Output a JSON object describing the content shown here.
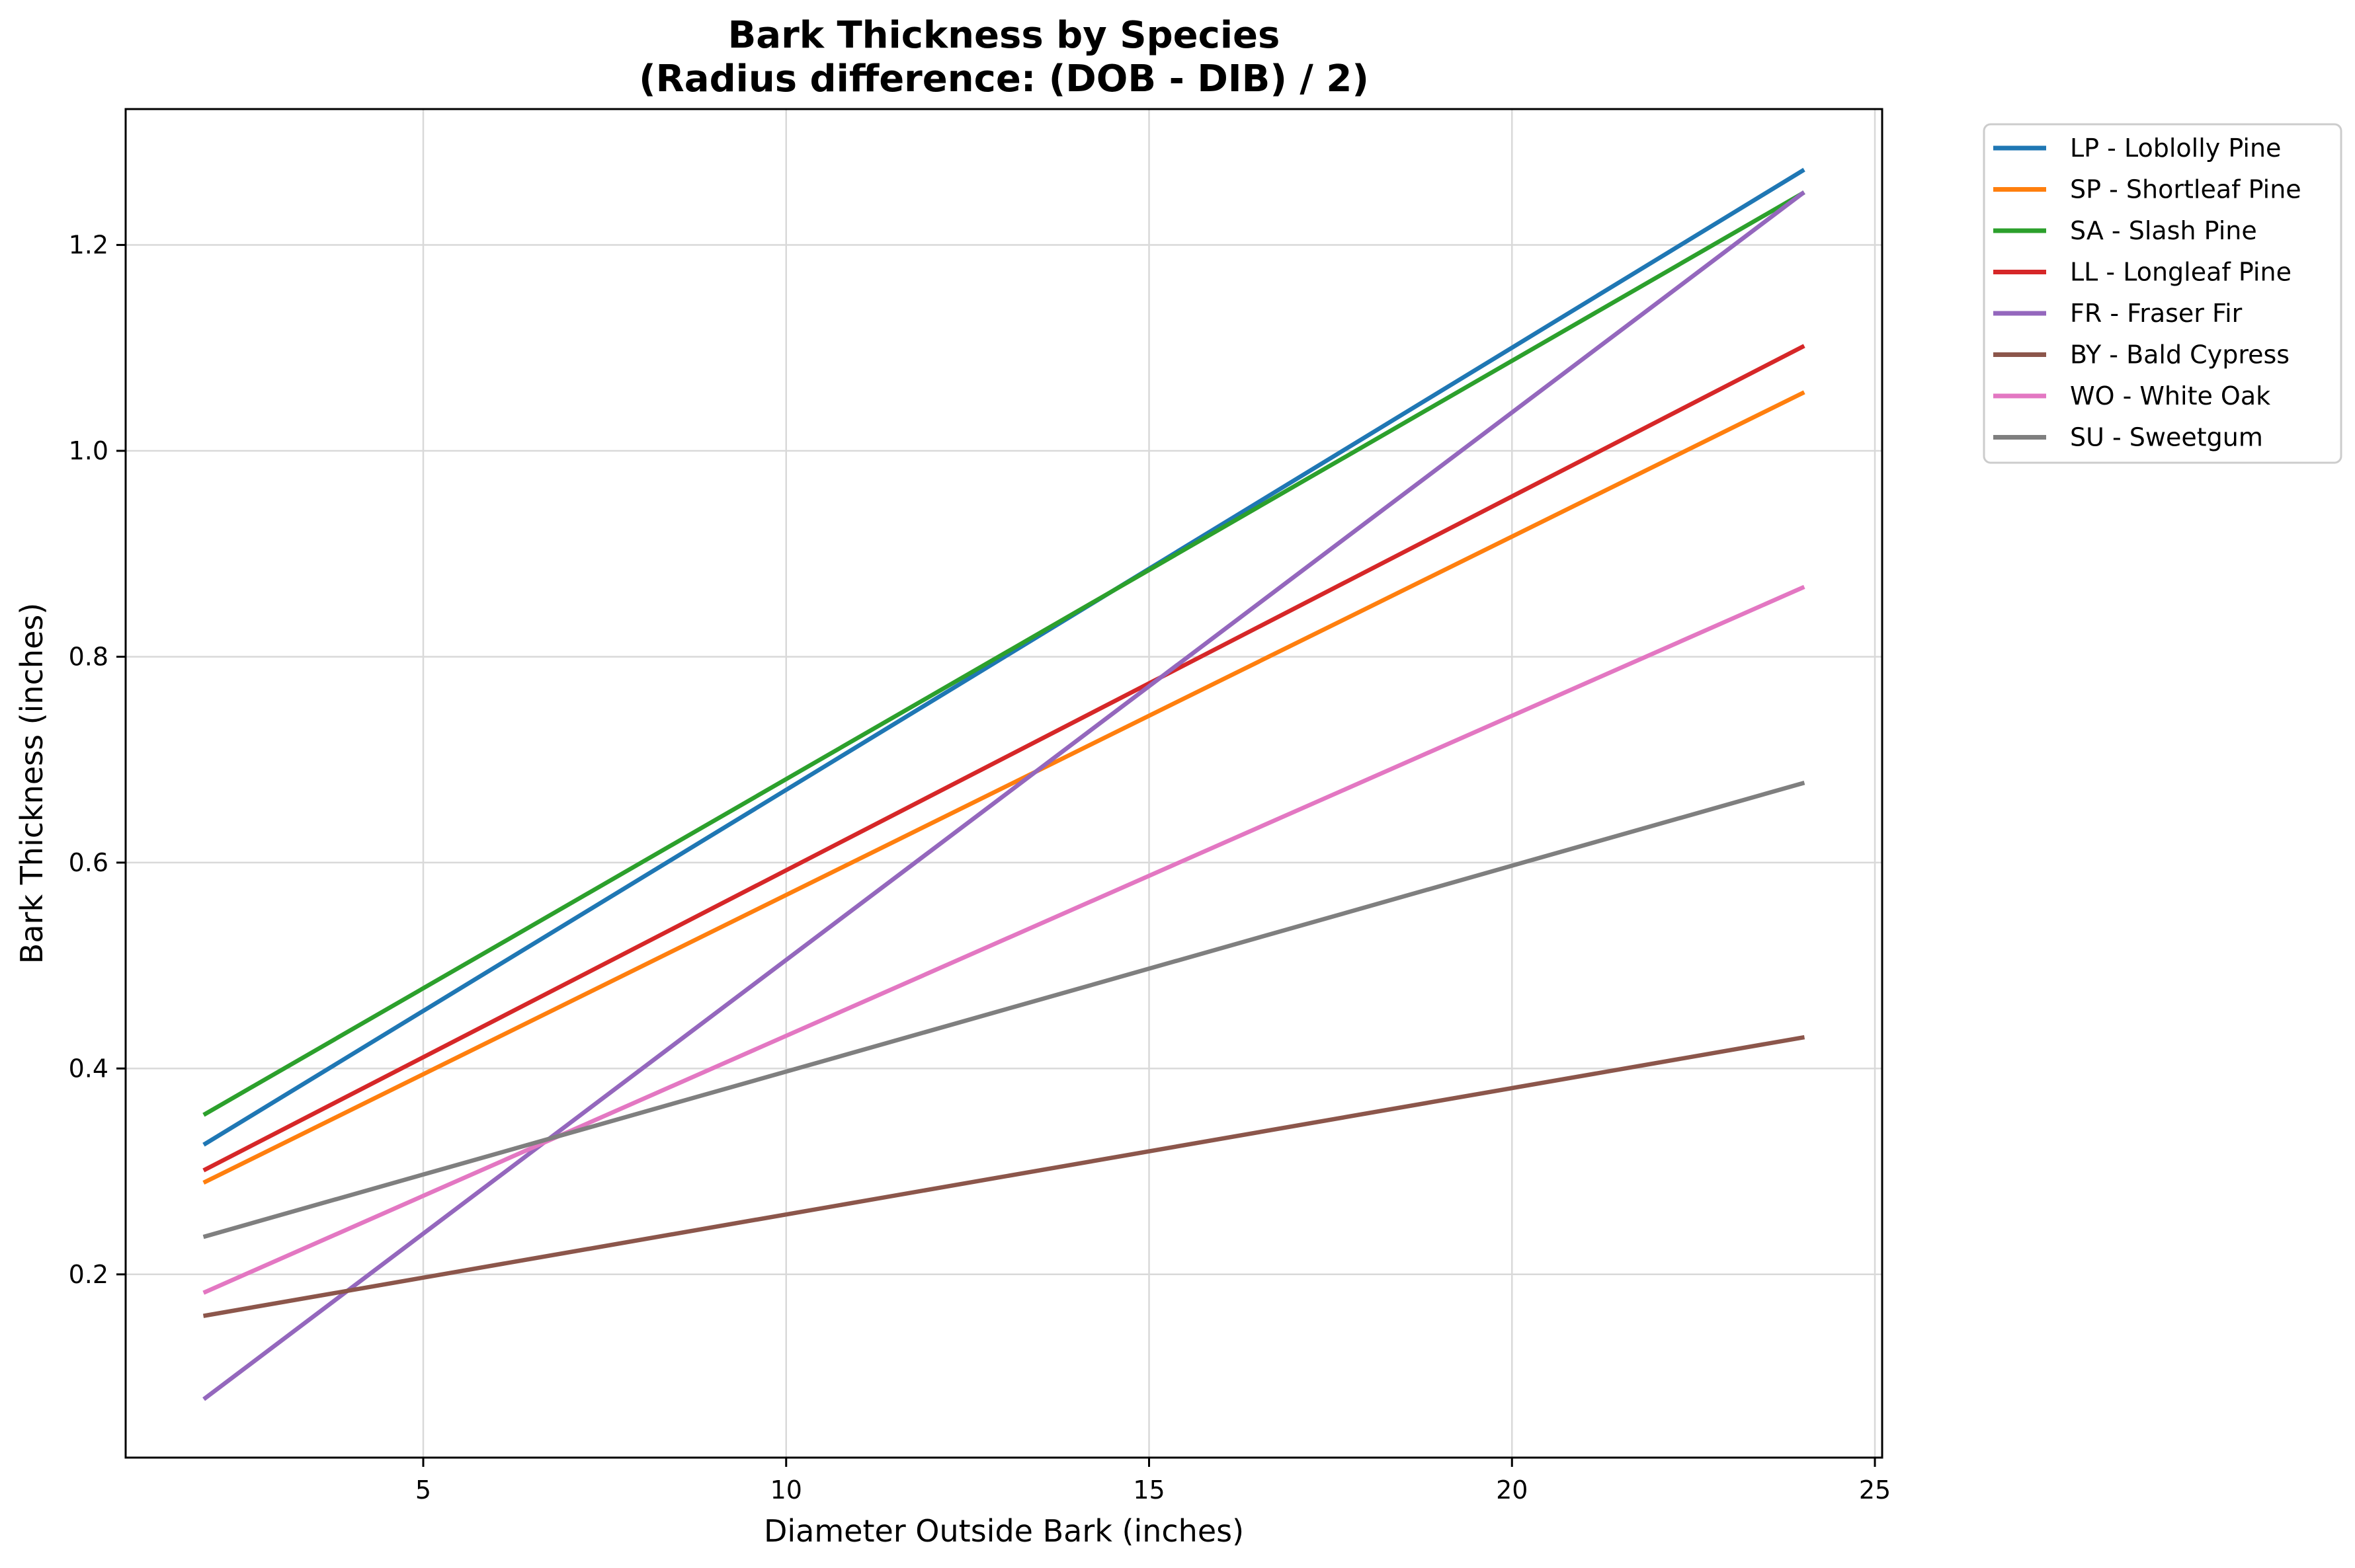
{
  "chart_data": {
    "type": "line",
    "title": "Bark Thickness by Species",
    "subtitle": "(Radius difference: (DOB - DIB) / 2)",
    "xlabel": "Diameter Outside Bark (inches)",
    "ylabel": "Bark Thickness (inches)",
    "xlim": [
      0.9,
      25.1
    ],
    "ylim": [
      0.022,
      1.332
    ],
    "xticks": [
      5,
      10,
      15,
      20,
      25
    ],
    "yticks": [
      0.2,
      0.4,
      0.6,
      0.8,
      1.0,
      1.2
    ],
    "xtick_labels": [
      "5",
      "10",
      "15",
      "20",
      "25"
    ],
    "ytick_labels": [
      "0.2",
      "0.4",
      "0.6",
      "0.8",
      "1.0",
      "1.2"
    ],
    "grid": true,
    "legend_position": "outside-top-right",
    "x": [
      2,
      24
    ],
    "series": [
      {
        "name": "LP - Loblolly Pine",
        "color": "#1f77b4",
        "values": [
          0.327,
          1.272
        ]
      },
      {
        "name": "SP - Shortleaf Pine",
        "color": "#ff7f0e",
        "values": [
          0.29,
          1.056
        ]
      },
      {
        "name": "SA - Slash Pine",
        "color": "#2ca02c",
        "values": [
          0.356,
          1.25
        ]
      },
      {
        "name": "LL - Longleaf Pine",
        "color": "#d62728",
        "values": [
          0.302,
          1.101
        ]
      },
      {
        "name": "FR - Fraser Fir",
        "color": "#9467bd",
        "values": [
          0.08,
          1.25
        ]
      },
      {
        "name": "BY - Bald Cypress",
        "color": "#8c564b",
        "values": [
          0.16,
          0.43
        ]
      },
      {
        "name": "WO - White Oak",
        "color": "#e377c2",
        "values": [
          0.183,
          0.867
        ]
      },
      {
        "name": "SU - Sweetgum",
        "color": "#7f7f7f",
        "values": [
          0.237,
          0.677
        ]
      }
    ]
  }
}
